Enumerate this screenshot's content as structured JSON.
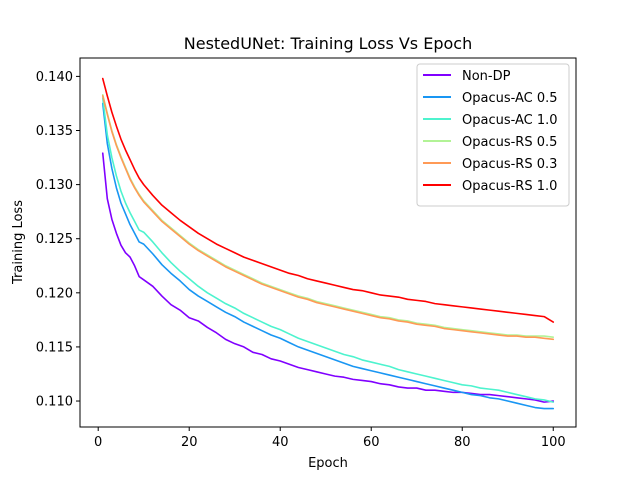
{
  "chart_data": {
    "type": "line",
    "title": "NestedUNet: Training Loss Vs Epoch",
    "xlabel": "Epoch",
    "ylabel": "Training Loss",
    "xlim": [
      -4,
      105
    ],
    "ylim": [
      0.1076,
      0.1417
    ],
    "xticks": [
      "0",
      "20",
      "40",
      "60",
      "80",
      "100"
    ],
    "yticks": [
      "0.110",
      "0.115",
      "0.120",
      "0.125",
      "0.130",
      "0.135",
      "0.140"
    ],
    "legend_position": "top-right",
    "grid": false,
    "series": [
      {
        "name": "Non-DP",
        "color": "#8000ff",
        "x": [
          1,
          2,
          3,
          4,
          5,
          6,
          7,
          8,
          9,
          10,
          12,
          14,
          16,
          18,
          20,
          22,
          24,
          26,
          28,
          30,
          32,
          34,
          36,
          38,
          40,
          42,
          44,
          46,
          48,
          50,
          52,
          54,
          56,
          58,
          60,
          62,
          64,
          66,
          68,
          70,
          72,
          74,
          76,
          78,
          80,
          82,
          84,
          86,
          88,
          90,
          92,
          94,
          96,
          98,
          100
        ],
        "values": [
          0.1329,
          0.1287,
          0.1268,
          0.1255,
          0.1244,
          0.1237,
          0.1233,
          0.1225,
          0.1215,
          0.1212,
          0.1206,
          0.1197,
          0.1189,
          0.1184,
          0.1177,
          0.1174,
          0.1168,
          0.1163,
          0.1157,
          0.1153,
          0.115,
          0.1145,
          0.1143,
          0.1139,
          0.1137,
          0.1134,
          0.1131,
          0.1129,
          0.1127,
          0.1125,
          0.1123,
          0.1122,
          0.112,
          0.1119,
          0.1118,
          0.1116,
          0.1115,
          0.1113,
          0.1112,
          0.1112,
          0.111,
          0.111,
          0.1109,
          0.1108,
          0.1108,
          0.1107,
          0.1106,
          0.1106,
          0.1105,
          0.1104,
          0.1103,
          0.1102,
          0.1101,
          0.1099,
          0.11
        ]
      },
      {
        "name": "Opacus-AC 0.5",
        "color": "#1996f3",
        "x": [
          1,
          2,
          3,
          4,
          5,
          6,
          7,
          8,
          9,
          10,
          12,
          14,
          16,
          18,
          20,
          22,
          24,
          26,
          28,
          30,
          32,
          34,
          36,
          38,
          40,
          42,
          44,
          46,
          48,
          50,
          52,
          54,
          56,
          58,
          60,
          62,
          64,
          66,
          68,
          70,
          72,
          74,
          76,
          78,
          80,
          82,
          84,
          86,
          88,
          90,
          92,
          94,
          96,
          98,
          100
        ],
        "values": [
          0.1375,
          0.1338,
          0.1315,
          0.1297,
          0.1283,
          0.1273,
          0.1263,
          0.1255,
          0.1247,
          0.1245,
          0.1236,
          0.1226,
          0.1218,
          0.1211,
          0.1203,
          0.1197,
          0.1192,
          0.1187,
          0.1182,
          0.1178,
          0.1173,
          0.1169,
          0.1165,
          0.1161,
          0.1158,
          0.1154,
          0.115,
          0.1147,
          0.1144,
          0.1141,
          0.1138,
          0.1135,
          0.1132,
          0.113,
          0.1128,
          0.1126,
          0.1124,
          0.1122,
          0.112,
          0.1118,
          0.1116,
          0.1114,
          0.1112,
          0.111,
          0.1108,
          0.1106,
          0.1105,
          0.1103,
          0.1102,
          0.11,
          0.1098,
          0.1096,
          0.1094,
          0.1093,
          0.1093
        ]
      },
      {
        "name": "Opacus-AC 1.0",
        "color": "#4df3ce",
        "x": [
          1,
          2,
          3,
          4,
          5,
          6,
          7,
          8,
          9,
          10,
          12,
          14,
          16,
          18,
          20,
          22,
          24,
          26,
          28,
          30,
          32,
          34,
          36,
          38,
          40,
          42,
          44,
          46,
          48,
          50,
          52,
          54,
          56,
          58,
          60,
          62,
          64,
          66,
          68,
          70,
          72,
          74,
          76,
          78,
          80,
          82,
          84,
          86,
          88,
          90,
          92,
          94,
          96,
          98,
          100
        ],
        "values": [
          0.138,
          0.1346,
          0.1325,
          0.1308,
          0.1294,
          0.1283,
          0.1274,
          0.1266,
          0.1258,
          0.1256,
          0.1247,
          0.1237,
          0.1228,
          0.122,
          0.1213,
          0.1206,
          0.12,
          0.1195,
          0.119,
          0.1186,
          0.1181,
          0.1177,
          0.1173,
          0.1169,
          0.1166,
          0.1162,
          0.1158,
          0.1155,
          0.1152,
          0.1149,
          0.1146,
          0.1143,
          0.1141,
          0.1138,
          0.1136,
          0.1134,
          0.1132,
          0.1129,
          0.1127,
          0.1125,
          0.1123,
          0.1121,
          0.1119,
          0.1117,
          0.1115,
          0.1114,
          0.1112,
          0.1111,
          0.111,
          0.1108,
          0.1106,
          0.1104,
          0.1102,
          0.1101,
          0.1099
        ]
      },
      {
        "name": "Opacus-RS 0.5",
        "color": "#b2f396",
        "x": [
          1,
          2,
          3,
          4,
          5,
          6,
          7,
          8,
          9,
          10,
          12,
          14,
          16,
          18,
          20,
          22,
          24,
          26,
          28,
          30,
          32,
          34,
          36,
          38,
          40,
          42,
          44,
          46,
          48,
          50,
          52,
          54,
          56,
          58,
          60,
          62,
          64,
          66,
          68,
          70,
          72,
          74,
          76,
          78,
          80,
          82,
          84,
          86,
          88,
          90,
          92,
          94,
          96,
          98,
          100
        ],
        "values": [
          0.1383,
          0.1366,
          0.135,
          0.1337,
          0.1326,
          0.1316,
          0.1306,
          0.1298,
          0.1291,
          0.1285,
          0.1276,
          0.1267,
          0.126,
          0.1253,
          0.1246,
          0.124,
          0.1235,
          0.123,
          0.1225,
          0.1221,
          0.1217,
          0.1213,
          0.1209,
          0.1206,
          0.1203,
          0.12,
          0.1197,
          0.1195,
          0.1192,
          0.119,
          0.1188,
          0.1186,
          0.1184,
          0.1182,
          0.118,
          0.1178,
          0.1177,
          0.1175,
          0.1174,
          0.1172,
          0.1171,
          0.117,
          0.1168,
          0.1167,
          0.1166,
          0.1165,
          0.1164,
          0.1163,
          0.1162,
          0.1161,
          0.1161,
          0.116,
          0.116,
          0.116,
          0.1159
        ]
      },
      {
        "name": "Opacus-RS 0.3",
        "color": "#ff9a56",
        "x": [
          1,
          2,
          3,
          4,
          5,
          6,
          7,
          8,
          9,
          10,
          12,
          14,
          16,
          18,
          20,
          22,
          24,
          26,
          28,
          30,
          32,
          34,
          36,
          38,
          40,
          42,
          44,
          46,
          48,
          50,
          52,
          54,
          56,
          58,
          60,
          62,
          64,
          66,
          68,
          70,
          72,
          74,
          76,
          78,
          80,
          82,
          84,
          86,
          88,
          90,
          92,
          94,
          96,
          98,
          100
        ],
        "values": [
          0.1382,
          0.1365,
          0.1349,
          0.1336,
          0.1325,
          0.1315,
          0.1305,
          0.1297,
          0.129,
          0.1284,
          0.1275,
          0.1266,
          0.1259,
          0.1252,
          0.1245,
          0.1239,
          0.1234,
          0.1229,
          0.1224,
          0.122,
          0.1216,
          0.1212,
          0.1208,
          0.1205,
          0.1202,
          0.1199,
          0.1196,
          0.1194,
          0.1191,
          0.1189,
          0.1187,
          0.1185,
          0.1183,
          0.1181,
          0.1179,
          0.1177,
          0.1176,
          0.1174,
          0.1173,
          0.1171,
          0.117,
          0.1169,
          0.1167,
          0.1166,
          0.1165,
          0.1164,
          0.1163,
          0.1162,
          0.1161,
          0.116,
          0.116,
          0.1159,
          0.1159,
          0.1158,
          0.1157
        ]
      },
      {
        "name": "Opacus-RS 1.0",
        "color": "#ff0000",
        "x": [
          1,
          2,
          3,
          4,
          5,
          6,
          7,
          8,
          9,
          10,
          12,
          14,
          16,
          18,
          20,
          22,
          24,
          26,
          28,
          30,
          32,
          34,
          36,
          38,
          40,
          42,
          44,
          46,
          48,
          50,
          52,
          54,
          56,
          58,
          60,
          62,
          64,
          66,
          68,
          70,
          72,
          74,
          76,
          78,
          80,
          82,
          84,
          86,
          88,
          90,
          92,
          94,
          96,
          98,
          100
        ],
        "values": [
          0.1398,
          0.1382,
          0.1367,
          0.1354,
          0.1342,
          0.1332,
          0.1323,
          0.1314,
          0.1306,
          0.13,
          0.129,
          0.1281,
          0.1274,
          0.1267,
          0.1261,
          0.1255,
          0.125,
          0.1245,
          0.1241,
          0.1237,
          0.1233,
          0.123,
          0.1227,
          0.1224,
          0.1221,
          0.1218,
          0.1216,
          0.1213,
          0.1211,
          0.1209,
          0.1207,
          0.1205,
          0.1203,
          0.1202,
          0.12,
          0.1198,
          0.1197,
          0.1196,
          0.1194,
          0.1193,
          0.1192,
          0.119,
          0.1189,
          0.1188,
          0.1187,
          0.1186,
          0.1185,
          0.1184,
          0.1183,
          0.1182,
          0.1181,
          0.118,
          0.1179,
          0.1178,
          0.1173
        ]
      }
    ]
  }
}
